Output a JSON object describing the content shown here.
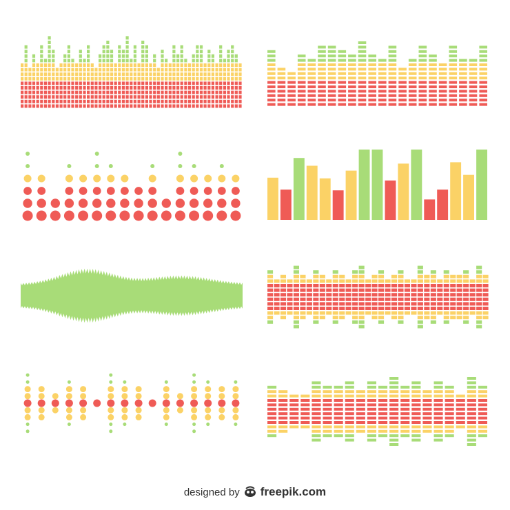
{
  "palette": {
    "red": "#ef5b56",
    "yellow": "#fbd266",
    "green": "#a8dc78",
    "text": "#333333"
  },
  "panels": [
    {
      "name": "equalizer-panel-1",
      "style": "stacked-square-blocks",
      "alignment": "bottom",
      "colors": [
        "red",
        "yellow",
        "green"
      ],
      "levels": [
        0.65,
        0.85,
        0.55,
        0.75,
        0.6,
        0.9,
        0.7,
        1.0,
        0.8,
        0.55,
        0.65,
        0.75,
        0.9,
        0.7,
        0.6,
        0.8,
        0.7,
        0.9,
        0.6,
        0.55,
        0.75,
        0.85,
        0.95,
        0.8,
        0.65,
        0.9,
        0.8,
        1.0,
        0.7,
        0.85,
        0.6,
        0.95,
        0.9,
        0.65,
        0.75,
        0.55,
        0.8,
        0.7,
        0.6,
        0.85,
        0.75,
        0.9,
        0.7,
        0.6,
        0.75,
        0.85,
        0.9,
        0.65,
        0.8,
        0.75,
        0.6,
        0.9,
        0.7,
        0.8,
        0.9,
        0.75,
        0.65
      ]
    },
    {
      "name": "equalizer-panel-2",
      "style": "stacked-wide-blocks",
      "alignment": "bottom",
      "colors": [
        "red",
        "yellow",
        "green"
      ],
      "levels": [
        0.85,
        0.6,
        0.5,
        0.8,
        0.7,
        0.9,
        0.95,
        0.85,
        0.8,
        1.0,
        0.8,
        0.7,
        0.9,
        0.6,
        0.75,
        0.95,
        0.8,
        0.65,
        0.9,
        0.7,
        0.75,
        0.9
      ]
    },
    {
      "name": "dot-equalizer-panel-1",
      "style": "dots",
      "alignment": "bottom",
      "colors": [
        "red",
        "yellow",
        "green"
      ],
      "levels": [
        1.0,
        0.6,
        0.4,
        0.8,
        0.6,
        1.0,
        0.8,
        0.6,
        0.5,
        0.8,
        0.3,
        1.0,
        0.8,
        0.6,
        0.8,
        0.7
      ]
    },
    {
      "name": "bar-chart-panel",
      "style": "solid-bars",
      "alignment": "bottom",
      "bars": [
        {
          "level": 0.6,
          "color": "yellow"
        },
        {
          "level": 0.43,
          "color": "red"
        },
        {
          "level": 0.88,
          "color": "green"
        },
        {
          "level": 0.77,
          "color": "yellow"
        },
        {
          "level": 0.59,
          "color": "yellow"
        },
        {
          "level": 0.42,
          "color": "red"
        },
        {
          "level": 0.7,
          "color": "yellow"
        },
        {
          "level": 1.0,
          "color": "green"
        },
        {
          "level": 1.0,
          "color": "green"
        },
        {
          "level": 0.56,
          "color": "red"
        },
        {
          "level": 0.8,
          "color": "yellow"
        },
        {
          "level": 1.0,
          "color": "green"
        },
        {
          "level": 0.29,
          "color": "red"
        },
        {
          "level": 0.43,
          "color": "red"
        },
        {
          "level": 0.82,
          "color": "yellow"
        },
        {
          "level": 0.64,
          "color": "yellow"
        },
        {
          "level": 1.0,
          "color": "green"
        }
      ]
    },
    {
      "name": "waveform-panel",
      "style": "waveform",
      "color": "green"
    },
    {
      "name": "equalizer-panel-3",
      "style": "symmetric-blocks",
      "alignment": "center",
      "colors": [
        "red",
        "yellow",
        "green"
      ],
      "levels": [
        0.85,
        0.6,
        0.75,
        0.5,
        0.95,
        0.7,
        0.55,
        0.85,
        0.65,
        0.6,
        0.9,
        0.7,
        0.5,
        0.8,
        0.95,
        0.6,
        0.7,
        0.85,
        0.5,
        0.75,
        0.9,
        0.6,
        0.55,
        0.95,
        0.7,
        0.8,
        0.6,
        0.9,
        0.65,
        0.75,
        0.85,
        0.55,
        0.95,
        0.7
      ]
    },
    {
      "name": "dot-equalizer-panel-2",
      "style": "symmetric-dots",
      "alignment": "center",
      "colors": [
        "red",
        "yellow",
        "green"
      ],
      "levels": [
        1.0,
        0.6,
        0.4,
        0.8,
        0.6,
        0.2,
        1.0,
        0.8,
        0.6,
        0.2,
        0.8,
        0.4,
        1.0,
        0.8,
        0.6,
        0.8
      ]
    },
    {
      "name": "equalizer-panel-4",
      "style": "symmetric-wide-blocks",
      "alignment": "center",
      "colors": [
        "red",
        "yellow",
        "green"
      ],
      "levels": [
        0.75,
        0.65,
        0.55,
        0.45,
        0.9,
        0.8,
        0.7,
        0.9,
        0.6,
        0.85,
        0.75,
        0.95,
        0.7,
        0.85,
        0.65,
        0.9,
        0.8,
        0.55,
        1.0,
        0.75
      ]
    }
  ],
  "credit": {
    "prefix": "designed by",
    "logo_icon": "freepik-logo-icon",
    "brand": "freepik.com"
  }
}
